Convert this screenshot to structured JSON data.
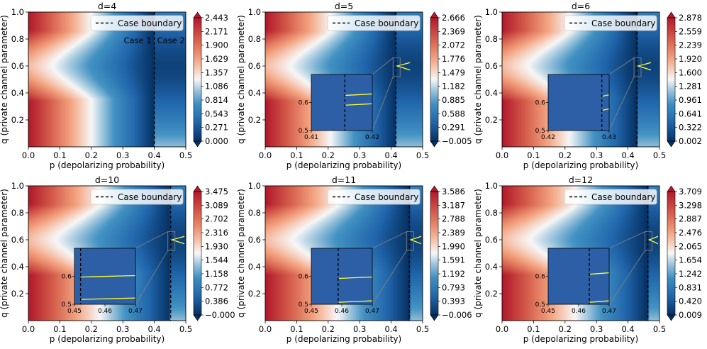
{
  "figure": {
    "xlabel": "p (depolarizing probability)",
    "ylabel": "q (private channel parameter)",
    "legend_label": "Case boundary",
    "case1_label": "Case 1",
    "case2_label": "Case 2"
  },
  "chart_data": [
    {
      "type": "heatmap",
      "title": "d=4",
      "xlim": [
        0,
        0.5
      ],
      "ylim": [
        0,
        1
      ],
      "xticks": [
        "0.0",
        "0.1",
        "0.2",
        "0.3",
        "0.4",
        "0.5"
      ],
      "yticks": [
        "0.2",
        "0.4",
        "0.6",
        "0.8",
        "1.0"
      ],
      "boundary_p": 0.4,
      "minimum_q": 0.6,
      "colorbar_ticks": [
        "2.443",
        "2.171",
        "1.900",
        "1.629",
        "1.357",
        "1.086",
        "0.814",
        "0.543",
        "0.271",
        "0.000"
      ],
      "shows_case_labels": true,
      "inset": null
    },
    {
      "type": "heatmap",
      "title": "d=5",
      "xlim": [
        0,
        0.5
      ],
      "ylim": [
        0,
        1
      ],
      "xticks": [
        "0.0",
        "0.1",
        "0.2",
        "0.3",
        "0.4",
        "0.5"
      ],
      "yticks": [
        "0.2",
        "0.4",
        "0.6",
        "0.8",
        "1.0"
      ],
      "boundary_p": 0.415,
      "minimum_q": 0.6,
      "colorbar_ticks": [
        "2.666",
        "2.369",
        "2.072",
        "1.776",
        "1.479",
        "1.182",
        "0.885",
        "0.588",
        "0.291",
        "−0.005"
      ],
      "inset": {
        "xlim": [
          0.41,
          0.42
        ],
        "ylim": [
          0.5,
          0.7
        ],
        "xticks": [
          "0.41",
          "0.42"
        ],
        "yticks": [
          "0.5",
          "0.6"
        ],
        "boundary_p": 0.4155,
        "line_a_q": 0.628,
        "line_b_q": 0.593
      }
    },
    {
      "type": "heatmap",
      "title": "d=6",
      "xlim": [
        0,
        0.5
      ],
      "ylim": [
        0,
        1
      ],
      "xticks": [
        "0.0",
        "0.1",
        "0.2",
        "0.3",
        "0.4",
        "0.5"
      ],
      "yticks": [
        "0.2",
        "0.4",
        "0.6",
        "0.8",
        "1.0"
      ],
      "boundary_p": 0.428,
      "minimum_q": 0.6,
      "colorbar_ticks": [
        "2.878",
        "2.559",
        "2.239",
        "1.920",
        "1.600",
        "1.281",
        "0.961",
        "0.641",
        "0.322",
        "0.002"
      ],
      "inset": {
        "xlim": [
          0.42,
          0.43
        ],
        "ylim": [
          0.5,
          0.7
        ],
        "xticks": [
          "0.42",
          "0.43"
        ],
        "yticks": [
          "0.5",
          "0.6"
        ],
        "boundary_p": 0.4288,
        "line_a_q": 0.625,
        "line_b_q": 0.575
      }
    },
    {
      "type": "heatmap",
      "title": "d=10",
      "xlim": [
        0,
        0.5
      ],
      "ylim": [
        0,
        1
      ],
      "xticks": [
        "0.0",
        "0.1",
        "0.2",
        "0.3",
        "0.4",
        "0.5"
      ],
      "yticks": [
        "0.2",
        "0.4",
        "0.6",
        "0.8",
        "1.0"
      ],
      "boundary_p": 0.452,
      "minimum_q": 0.6,
      "colorbar_ticks": [
        "3.475",
        "3.089",
        "2.702",
        "2.316",
        "1.930",
        "1.544",
        "1.158",
        "0.772",
        "0.386",
        "−0.000"
      ],
      "inset": {
        "xlim": [
          0.45,
          0.47
        ],
        "ylim": [
          0.5,
          0.7
        ],
        "xticks": [
          "0.45",
          "0.46",
          "0.47"
        ],
        "yticks": [
          "0.5",
          "0.6"
        ],
        "boundary_p": 0.452,
        "line_a_q": 0.6,
        "line_b_q": 0.52
      }
    },
    {
      "type": "heatmap",
      "title": "d=11",
      "xlim": [
        0,
        0.5
      ],
      "ylim": [
        0,
        1
      ],
      "xticks": [
        "0.0",
        "0.1",
        "0.2",
        "0.3",
        "0.4",
        "0.5"
      ],
      "yticks": [
        "0.2",
        "0.4",
        "0.6",
        "0.8",
        "1.0"
      ],
      "boundary_p": 0.458,
      "minimum_q": 0.6,
      "colorbar_ticks": [
        "3.586",
        "3.187",
        "2.788",
        "2.389",
        "1.990",
        "1.591",
        "1.192",
        "0.793",
        "0.393",
        "−0.006"
      ],
      "inset": {
        "xlim": [
          0.45,
          0.47
        ],
        "ylim": [
          0.5,
          0.7
        ],
        "xticks": [
          "0.45",
          "0.46",
          "0.47"
        ],
        "yticks": [
          "0.5",
          "0.6"
        ],
        "boundary_p": 0.4588,
        "line_a_q": 0.595,
        "line_b_q": 0.51
      }
    },
    {
      "type": "heatmap",
      "title": "d=12",
      "xlim": [
        0,
        0.5
      ],
      "ylim": [
        0,
        1
      ],
      "xticks": [
        "0.0",
        "0.1",
        "0.2",
        "0.3",
        "0.4",
        "0.5"
      ],
      "yticks": [
        "0.2",
        "0.4",
        "0.6",
        "0.8",
        "1.0"
      ],
      "boundary_p": 0.463,
      "minimum_q": 0.6,
      "colorbar_ticks": [
        "3.709",
        "3.298",
        "2.887",
        "2.476",
        "2.065",
        "1.654",
        "1.242",
        "0.831",
        "0.420",
        "0.009"
      ],
      "inset": {
        "xlim": [
          0.45,
          0.47
        ],
        "ylim": [
          0.5,
          0.7
        ],
        "xticks": [
          "0.45",
          "0.46",
          "0.47"
        ],
        "yticks": [
          "0.5",
          "0.6"
        ],
        "boundary_p": 0.4635,
        "line_a_q": 0.61,
        "line_b_q": 0.51
      }
    }
  ],
  "colors": {
    "high": "#b2182b",
    "mid": "#f7f7f7",
    "low": "#2166ac",
    "boundary": "#000000",
    "contour": "#ffff33",
    "inset_frame": "#808080"
  }
}
